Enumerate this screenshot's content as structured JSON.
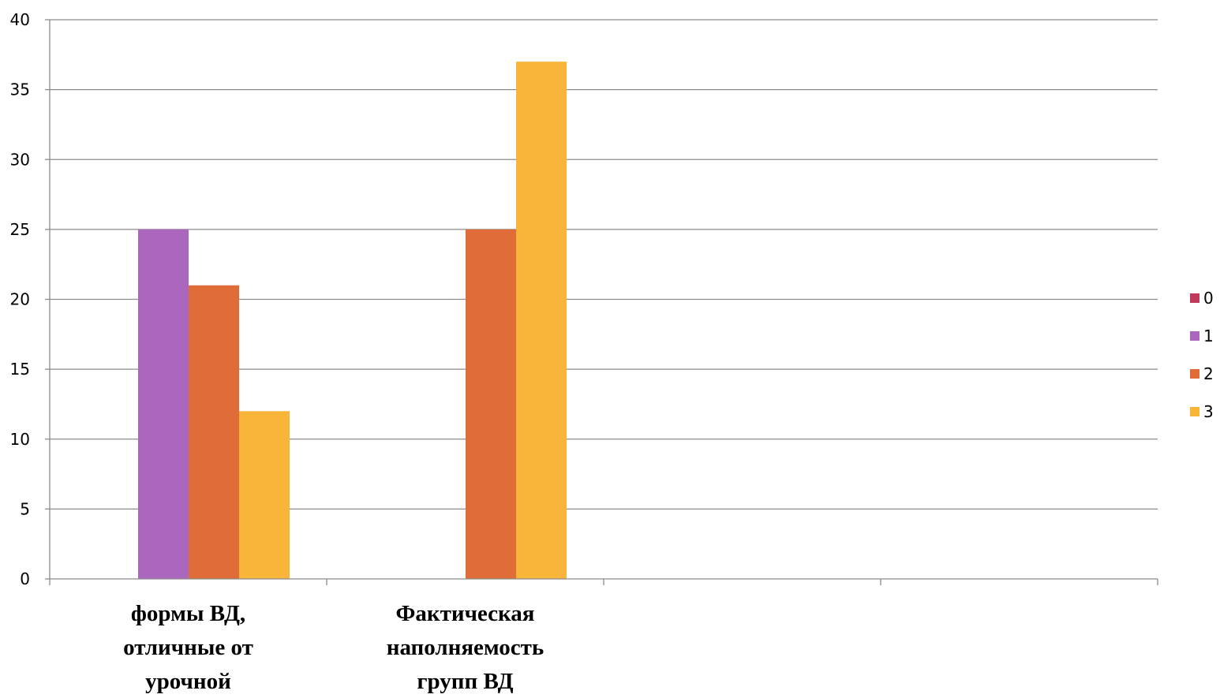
{
  "chart_data": {
    "type": "bar",
    "categories": [
      [
        "формы ВД,",
        "отличные от",
        "урочной"
      ],
      [
        "Фактическая",
        "наполняемость",
        "групп ВД"
      ],
      [],
      []
    ],
    "series": [
      {
        "name": "0",
        "color": "#C0395A",
        "values": [
          0,
          0,
          0,
          0
        ]
      },
      {
        "name": "1",
        "color": "#AB67BD",
        "values": [
          25,
          0,
          0,
          0
        ]
      },
      {
        "name": "2",
        "color": "#E06C37",
        "values": [
          21,
          25,
          0,
          0
        ]
      },
      {
        "name": "3",
        "color": "#F8B53A",
        "values": [
          12,
          37,
          0,
          0
        ]
      }
    ],
    "ylim": [
      0,
      40
    ],
    "yticks": [
      "0",
      "5",
      "10",
      "15",
      "20",
      "25",
      "30",
      "35",
      "40"
    ],
    "grid": true,
    "legend_position": "right",
    "title": "",
    "xlabel": "",
    "ylabel": ""
  }
}
